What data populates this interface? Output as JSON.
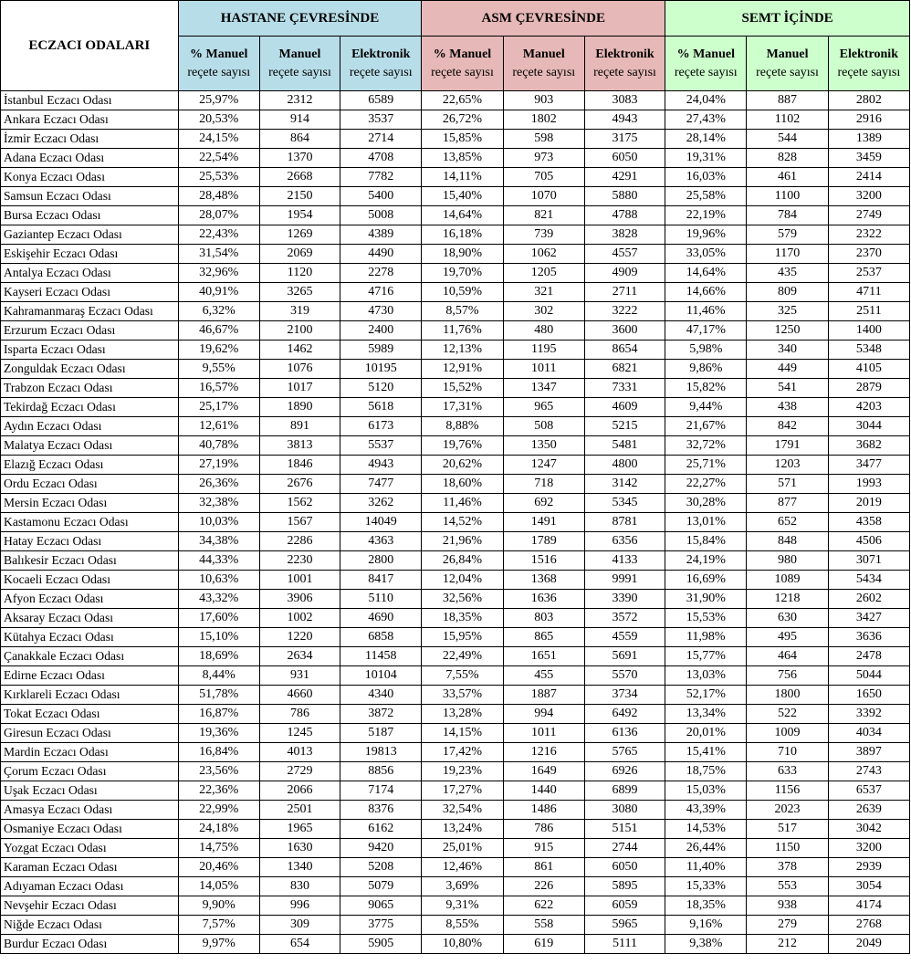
{
  "header": {
    "corner": "ECZACI ODALARI",
    "groups": [
      "HASTANE ÇEVRESİNDE",
      "ASM ÇEVRESİNDE",
      "SEMT İÇİNDE"
    ],
    "sub_top": [
      "% Manuel",
      "Manuel",
      "Elektronik"
    ],
    "sub_bottom": [
      "reçete sayısı",
      "reçete sayısı",
      "reçete sayısı"
    ]
  },
  "colors": {
    "hastane": "#b7dde8",
    "asm": "#e6b8b7",
    "semt": "#ccffcc"
  },
  "rows": [
    [
      "İstanbul Eczacı Odası",
      "25,97%",
      "2312",
      "6589",
      "22,65%",
      "903",
      "3083",
      "24,04%",
      "887",
      "2802"
    ],
    [
      "Ankara Eczacı Odası",
      "20,53%",
      "914",
      "3537",
      "26,72%",
      "1802",
      "4943",
      "27,43%",
      "1102",
      "2916"
    ],
    [
      "İzmir Eczacı Odası",
      "24,15%",
      "864",
      "2714",
      "15,85%",
      "598",
      "3175",
      "28,14%",
      "544",
      "1389"
    ],
    [
      "Adana Eczacı Odası",
      "22,54%",
      "1370",
      "4708",
      "13,85%",
      "973",
      "6050",
      "19,31%",
      "828",
      "3459"
    ],
    [
      "Konya Eczacı Odası",
      "25,53%",
      "2668",
      "7782",
      "14,11%",
      "705",
      "4291",
      "16,03%",
      "461",
      "2414"
    ],
    [
      "Samsun Eczacı Odası",
      "28,48%",
      "2150",
      "5400",
      "15,40%",
      "1070",
      "5880",
      "25,58%",
      "1100",
      "3200"
    ],
    [
      "Bursa Eczacı Odası",
      "28,07%",
      "1954",
      "5008",
      "14,64%",
      "821",
      "4788",
      "22,19%",
      "784",
      "2749"
    ],
    [
      "Gaziantep Eczacı Odası",
      "22,43%",
      "1269",
      "4389",
      "16,18%",
      "739",
      "3828",
      "19,96%",
      "579",
      "2322"
    ],
    [
      "Eskişehir Eczacı Odası",
      "31,54%",
      "2069",
      "4490",
      "18,90%",
      "1062",
      "4557",
      "33,05%",
      "1170",
      "2370"
    ],
    [
      "Antalya Eczacı Odası",
      "32,96%",
      "1120",
      "2278",
      "19,70%",
      "1205",
      "4909",
      "14,64%",
      "435",
      "2537"
    ],
    [
      "Kayseri Eczacı Odası",
      "40,91%",
      "3265",
      "4716",
      "10,59%",
      "321",
      "2711",
      "14,66%",
      "809",
      "4711"
    ],
    [
      "Kahramanmaraş Eczacı Odası",
      "6,32%",
      "319",
      "4730",
      "8,57%",
      "302",
      "3222",
      "11,46%",
      "325",
      "2511"
    ],
    [
      "Erzurum Eczacı Odası",
      "46,67%",
      "2100",
      "2400",
      "11,76%",
      "480",
      "3600",
      "47,17%",
      "1250",
      "1400"
    ],
    [
      "Isparta Eczacı Odası",
      "19,62%",
      "1462",
      "5989",
      "12,13%",
      "1195",
      "8654",
      "5,98%",
      "340",
      "5348"
    ],
    [
      "Zonguldak Eczacı Odası",
      "9,55%",
      "1076",
      "10195",
      "12,91%",
      "1011",
      "6821",
      "9,86%",
      "449",
      "4105"
    ],
    [
      "Trabzon Eczacı Odası",
      "16,57%",
      "1017",
      "5120",
      "15,52%",
      "1347",
      "7331",
      "15,82%",
      "541",
      "2879"
    ],
    [
      "Tekirdağ Eczacı Odası",
      "25,17%",
      "1890",
      "5618",
      "17,31%",
      "965",
      "4609",
      "9,44%",
      "438",
      "4203"
    ],
    [
      "Aydın Eczacı Odası",
      "12,61%",
      "891",
      "6173",
      "8,88%",
      "508",
      "5215",
      "21,67%",
      "842",
      "3044"
    ],
    [
      "Malatya Eczacı Odası",
      "40,78%",
      "3813",
      "5537",
      "19,76%",
      "1350",
      "5481",
      "32,72%",
      "1791",
      "3682"
    ],
    [
      "Elazığ Eczacı Odası",
      "27,19%",
      "1846",
      "4943",
      "20,62%",
      "1247",
      "4800",
      "25,71%",
      "1203",
      "3477"
    ],
    [
      "Ordu Eczacı Odası",
      "26,36%",
      "2676",
      "7477",
      "18,60%",
      "718",
      "3142",
      "22,27%",
      "571",
      "1993"
    ],
    [
      "Mersin Eczacı Odası",
      "32,38%",
      "1562",
      "3262",
      "11,46%",
      "692",
      "5345",
      "30,28%",
      "877",
      "2019"
    ],
    [
      "Kastamonu Eczacı Odası",
      "10,03%",
      "1567",
      "14049",
      "14,52%",
      "1491",
      "8781",
      "13,01%",
      "652",
      "4358"
    ],
    [
      "Hatay Eczacı Odası",
      "34,38%",
      "2286",
      "4363",
      "21,96%",
      "1789",
      "6356",
      "15,84%",
      "848",
      "4506"
    ],
    [
      "Balıkesir Eczacı Odası",
      "44,33%",
      "2230",
      "2800",
      "26,84%",
      "1516",
      "4133",
      "24,19%",
      "980",
      "3071"
    ],
    [
      "Kocaeli Eczacı Odası",
      "10,63%",
      "1001",
      "8417",
      "12,04%",
      "1368",
      "9991",
      "16,69%",
      "1089",
      "5434"
    ],
    [
      "Afyon Eczacı Odası",
      "43,32%",
      "3906",
      "5110",
      "32,56%",
      "1636",
      "3390",
      "31,90%",
      "1218",
      "2602"
    ],
    [
      "Aksaray Eczacı Odası",
      "17,60%",
      "1002",
      "4690",
      "18,35%",
      "803",
      "3572",
      "15,53%",
      "630",
      "3427"
    ],
    [
      "Kütahya Eczacı Odası",
      "15,10%",
      "1220",
      "6858",
      "15,95%",
      "865",
      "4559",
      "11,98%",
      "495",
      "3636"
    ],
    [
      "Çanakkale Eczacı Odası",
      "18,69%",
      "2634",
      "11458",
      "22,49%",
      "1651",
      "5691",
      "15,77%",
      "464",
      "2478"
    ],
    [
      "Edirne Eczacı Odası",
      "8,44%",
      "931",
      "10104",
      "7,55%",
      "455",
      "5570",
      "13,03%",
      "756",
      "5044"
    ],
    [
      "Kırklareli Eczacı Odası",
      "51,78%",
      "4660",
      "4340",
      "33,57%",
      "1887",
      "3734",
      "52,17%",
      "1800",
      "1650"
    ],
    [
      "Tokat Eczacı Odası",
      "16,87%",
      "786",
      "3872",
      "13,28%",
      "994",
      "6492",
      "13,34%",
      "522",
      "3392"
    ],
    [
      "Giresun Eczacı Odası",
      "19,36%",
      "1245",
      "5187",
      "14,15%",
      "1011",
      "6136",
      "20,01%",
      "1009",
      "4034"
    ],
    [
      "Mardin Eczacı Odası",
      "16,84%",
      "4013",
      "19813",
      "17,42%",
      "1216",
      "5765",
      "15,41%",
      "710",
      "3897"
    ],
    [
      "Çorum Eczacı Odası",
      "23,56%",
      "2729",
      "8856",
      "19,23%",
      "1649",
      "6926",
      "18,75%",
      "633",
      "2743"
    ],
    [
      "Uşak Eczacı Odası",
      "22,36%",
      "2066",
      "7174",
      "17,27%",
      "1440",
      "6899",
      "15,03%",
      "1156",
      "6537"
    ],
    [
      "Amasya Eczacı Odası",
      "22,99%",
      "2501",
      "8376",
      "32,54%",
      "1486",
      "3080",
      "43,39%",
      "2023",
      "2639"
    ],
    [
      "Osmaniye Eczacı Odası",
      "24,18%",
      "1965",
      "6162",
      "13,24%",
      "786",
      "5151",
      "14,53%",
      "517",
      "3042"
    ],
    [
      "Yozgat Eczacı Odası",
      "14,75%",
      "1630",
      "9420",
      "25,01%",
      "915",
      "2744",
      "26,44%",
      "1150",
      "3200"
    ],
    [
      "Karaman Eczacı Odası",
      "20,46%",
      "1340",
      "5208",
      "12,46%",
      "861",
      "6050",
      "11,40%",
      "378",
      "2939"
    ],
    [
      "Adıyaman Eczacı Odası",
      "14,05%",
      "830",
      "5079",
      "3,69%",
      "226",
      "5895",
      "15,33%",
      "553",
      "3054"
    ],
    [
      "Nevşehir Eczacı Odası",
      "9,90%",
      "996",
      "9065",
      "9,31%",
      "622",
      "6059",
      "18,35%",
      "938",
      "4174"
    ],
    [
      "Niğde Eczacı Odası",
      "7,57%",
      "309",
      "3775",
      "8,55%",
      "558",
      "5965",
      "9,16%",
      "279",
      "2768"
    ],
    [
      "Burdur Eczacı Odası",
      "9,97%",
      "654",
      "5905",
      "10,80%",
      "619",
      "5111",
      "9,38%",
      "212",
      "2049"
    ]
  ]
}
